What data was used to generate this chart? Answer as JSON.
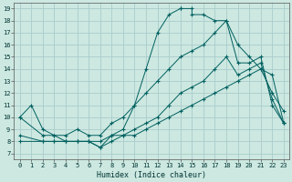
{
  "xlabel": "Humidex (Indice chaleur)",
  "bg_color": "#cce8e0",
  "grid_color": "#aacccc",
  "line_color": "#006060",
  "xlim": [
    -0.5,
    23.5
  ],
  "ylim": [
    6.5,
    19.5
  ],
  "xticks": [
    0,
    1,
    2,
    3,
    4,
    5,
    6,
    7,
    8,
    9,
    10,
    11,
    12,
    13,
    14,
    15,
    16,
    17,
    18,
    19,
    20,
    21,
    22,
    23
  ],
  "yticks": [
    7,
    8,
    9,
    10,
    11,
    12,
    13,
    14,
    15,
    16,
    17,
    18,
    19
  ],
  "line_main": {
    "x": [
      0,
      1,
      2,
      3,
      4,
      5,
      6,
      7,
      8,
      9,
      10,
      11,
      12,
      13,
      14,
      14,
      15,
      15,
      16,
      17,
      18,
      19,
      20,
      21,
      22,
      23
    ],
    "y": [
      10,
      11,
      9,
      8.5,
      8,
      8,
      8,
      7.5,
      8.5,
      9,
      11,
      14,
      17,
      18.5,
      19,
      19,
      19,
      18.5,
      18.5,
      18,
      18,
      16,
      15,
      14,
      12,
      10.5
    ]
  },
  "line_upper_diag": {
    "x": [
      0,
      2,
      3,
      4,
      5,
      6,
      7,
      8,
      9,
      10,
      11,
      12,
      13,
      14,
      15,
      16,
      17,
      18,
      19,
      20,
      21,
      22,
      23
    ],
    "y": [
      10,
      8.5,
      8.5,
      8.5,
      9,
      8.5,
      8.5,
      9.5,
      10,
      11,
      12,
      13,
      14,
      15,
      15.5,
      16,
      17,
      18,
      14.5,
      14.5,
      15,
      11,
      9.5
    ]
  },
  "line_lower_diag": {
    "x": [
      0,
      2,
      3,
      4,
      5,
      6,
      7,
      8,
      9,
      10,
      11,
      12,
      13,
      14,
      15,
      16,
      17,
      18,
      19,
      20,
      21,
      22,
      23
    ],
    "y": [
      8,
      8,
      8,
      8,
      8,
      8,
      8,
      8.5,
      8.5,
      8.5,
      9,
      9.5,
      10,
      10.5,
      11,
      11.5,
      12,
      12.5,
      13,
      13.5,
      14,
      13.5,
      9.5
    ]
  },
  "line_close": {
    "x": [
      0,
      2,
      3,
      4,
      5,
      6,
      7,
      8,
      9,
      10,
      11,
      12,
      13,
      14,
      15,
      16,
      17,
      18,
      19,
      20,
      21,
      22,
      23
    ],
    "y": [
      8.5,
      8,
      8,
      8,
      8,
      8,
      7.5,
      8,
      8.5,
      9,
      9.5,
      10,
      11,
      12,
      12.5,
      13,
      14,
      15,
      13.5,
      14,
      14.5,
      11.5,
      9.5
    ]
  }
}
